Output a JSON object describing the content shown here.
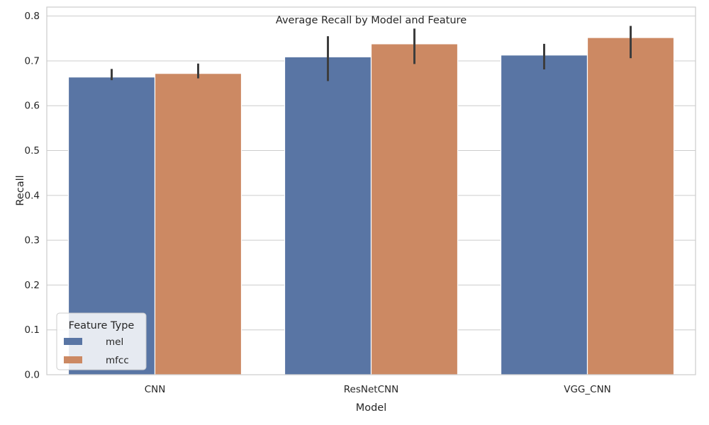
{
  "chart_data": {
    "type": "bar",
    "title": "Average Recall by Model and Feature",
    "xlabel": "Model",
    "ylabel": "Recall",
    "categories": [
      "CNN",
      "ResNetCNN",
      "VGG_CNN"
    ],
    "ylim": [
      0,
      0.82
    ],
    "yticks": [
      "0.0",
      "0.1",
      "0.2",
      "0.3",
      "0.4",
      "0.5",
      "0.6",
      "0.7",
      "0.8"
    ],
    "grid": true,
    "legend": {
      "title": "Feature Type",
      "placement": "lower-left"
    },
    "series": [
      {
        "name": "mel",
        "color": "#5975a4",
        "values": [
          0.664,
          0.709,
          0.713
        ],
        "error_low": [
          0.657,
          0.655,
          0.681
        ],
        "error_high": [
          0.682,
          0.755,
          0.738
        ]
      },
      {
        "name": "mfcc",
        "color": "#cc8963",
        "values": [
          0.672,
          0.738,
          0.752
        ],
        "error_low": [
          0.661,
          0.693,
          0.706
        ],
        "error_high": [
          0.694,
          0.772,
          0.778
        ]
      }
    ]
  }
}
